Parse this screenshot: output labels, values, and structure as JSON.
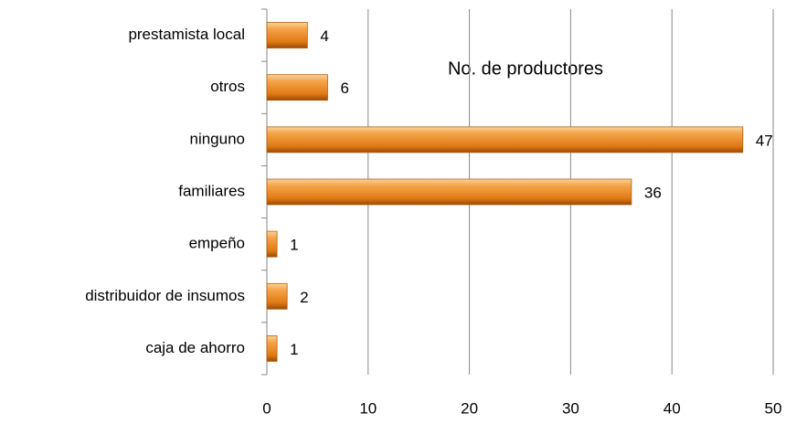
{
  "chart_data": {
    "type": "bar",
    "orientation": "horizontal",
    "title": "No. de productores",
    "categories": [
      "prestamista local",
      "otros",
      "ninguno",
      "familiares",
      "empeño",
      "distribuidor de insumos",
      "caja de ahorro"
    ],
    "values": [
      4,
      6,
      47,
      36,
      1,
      2,
      1
    ],
    "color": "#e8831f",
    "xlim": [
      0,
      50
    ],
    "xticks": [
      0,
      10,
      20,
      30,
      40,
      50
    ],
    "grid": true
  }
}
